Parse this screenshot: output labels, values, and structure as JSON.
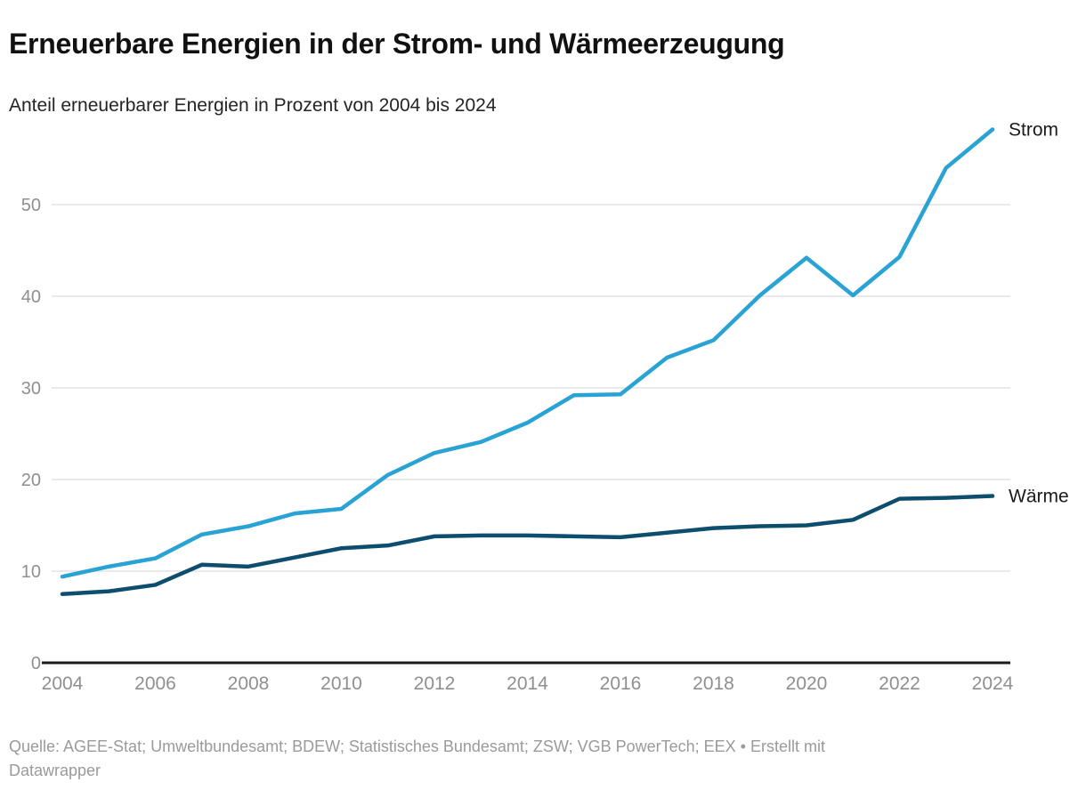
{
  "chart_data": {
    "type": "line",
    "title": "Erneuerbare Energien in der Strom- und Wärmeerzeugung",
    "subtitle": "Anteil erneuerbarer Energien in Prozent von 2004 bis 2024",
    "unit": "Prozent",
    "grid": "horizontal-gridlines",
    "legend_position": "direct-labels-right-of-line-ends",
    "ylim": [
      0,
      60
    ],
    "yticks": [
      0,
      10,
      20,
      30,
      40,
      50
    ],
    "xticks": [
      2004,
      2006,
      2008,
      2010,
      2012,
      2014,
      2016,
      2018,
      2020,
      2022,
      2024
    ],
    "x": [
      2004,
      2005,
      2006,
      2007,
      2008,
      2009,
      2010,
      2011,
      2012,
      2013,
      2014,
      2015,
      2016,
      2017,
      2018,
      2019,
      2020,
      2021,
      2022,
      2023,
      2024
    ],
    "series": [
      {
        "id": "strom",
        "name": "Strom",
        "color": "#29a2d4",
        "values": [
          9.4,
          10.5,
          11.4,
          14.0,
          14.9,
          16.3,
          16.8,
          20.5,
          22.9,
          24.1,
          26.2,
          29.2,
          29.3,
          33.3,
          35.2,
          40.1,
          44.2,
          40.1,
          44.3,
          54.0,
          58.2
        ]
      },
      {
        "id": "waerme",
        "name": "Wärme",
        "color": "#0d4d6d",
        "values": [
          7.5,
          7.8,
          8.5,
          10.7,
          10.5,
          11.5,
          12.5,
          12.8,
          13.8,
          13.9,
          13.9,
          13.8,
          13.7,
          14.2,
          14.7,
          14.9,
          15.0,
          15.6,
          17.9,
          18.0,
          18.2
        ]
      }
    ]
  },
  "footer": {
    "source_line1": "Quelle: AGEE-Stat; Umweltbundesamt; BDEW; Statistisches Bundesamt; ZSW; VGB PowerTech; EEX • Erstellt mit",
    "source_line2": "Datawrapper"
  },
  "colors": {
    "axis_text": "#8f8f8f",
    "gridline": "#e4e4e4",
    "baseline": "#1c1c1c",
    "series_label_text": "#1a1a1a"
  }
}
